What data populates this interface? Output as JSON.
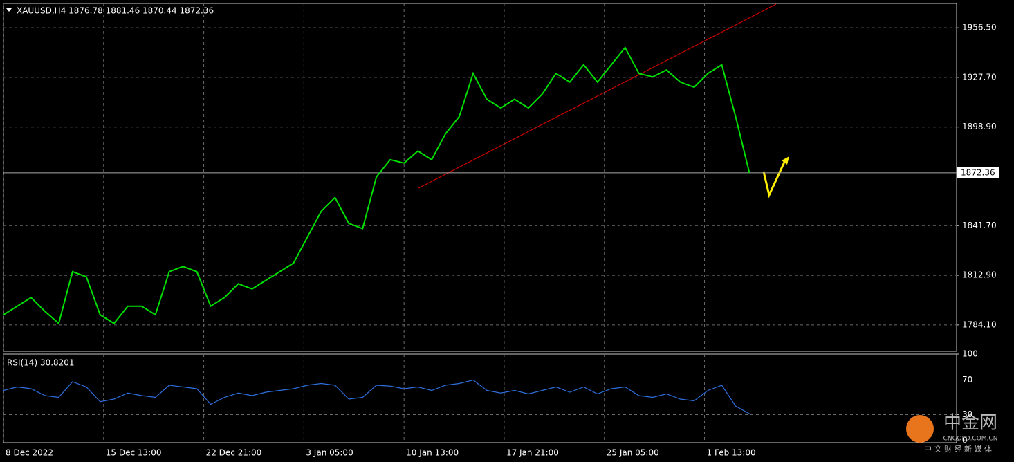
{
  "chart_data": [
    {
      "type": "line",
      "title": "XAUUSD,H4  1876.78 1881.46 1870.44 1872.36",
      "current_price": {
        "value": 1872.36,
        "label": "1872.36"
      },
      "xlim": [
        0,
        276
      ],
      "xticks": [
        {
          "value": 0,
          "label": "8 Dec 2022"
        },
        {
          "value": 29,
          "label": "15 Dec 13:00"
        },
        {
          "value": 58,
          "label": "22 Dec 21:00"
        },
        {
          "value": 87,
          "label": "3 Jan 05:00"
        },
        {
          "value": 116,
          "label": "10 Jan 13:00"
        },
        {
          "value": 145,
          "label": "17 Jan 21:00"
        },
        {
          "value": 174,
          "label": "25 Jan 05:00"
        },
        {
          "value": 203,
          "label": "1 Feb 13:00"
        }
      ],
      "ylim": [
        1768.8,
        1970.6
      ],
      "yticks": [
        {
          "value": 1784.1,
          "label": "1784.10"
        },
        {
          "value": 1812.9,
          "label": "1812.90"
        },
        {
          "value": 1841.7,
          "label": "1841.70"
        },
        {
          "value": 1898.9,
          "label": "1898.90"
        },
        {
          "value": 1927.7,
          "label": "1927.70"
        },
        {
          "value": 1956.5,
          "label": "1956.50"
        }
      ],
      "grid": true,
      "x": [
        0,
        4,
        8,
        12,
        16,
        20,
        24,
        28,
        32,
        36,
        40,
        44,
        48,
        52,
        56,
        60,
        64,
        68,
        72,
        76,
        80,
        84,
        88,
        92,
        96,
        100,
        104,
        108,
        112,
        116,
        120,
        124,
        128,
        132,
        136,
        140,
        144,
        148,
        152,
        156,
        160,
        164,
        168,
        172,
        176,
        180,
        184,
        188,
        192,
        196,
        200,
        204,
        208,
        212,
        216
      ],
      "series": [
        {
          "name": "XAUUSD",
          "color": "#00e000",
          "values": [
            1790,
            1795,
            1800,
            1792,
            1785,
            1815,
            1812,
            1790,
            1785,
            1795,
            1795,
            1790,
            1815,
            1818,
            1815,
            1795,
            1800,
            1808,
            1805,
            1810,
            1815,
            1820,
            1835,
            1850,
            1858,
            1843,
            1840,
            1870,
            1880,
            1878,
            1885,
            1880,
            1895,
            1905,
            1930,
            1915,
            1910,
            1915,
            1910,
            1918,
            1930,
            1925,
            1935,
            1925,
            1935,
            1945,
            1930,
            1928,
            1932,
            1925,
            1922,
            1930,
            1935,
            1905,
            1872.36
          ]
        }
      ]
    },
    {
      "type": "line",
      "title": "RSI(14) 30.8201",
      "xlim": [
        0,
        276
      ],
      "ylim": [
        0,
        100
      ],
      "yticks": [
        0,
        30,
        70,
        100
      ],
      "grid": true,
      "x": [
        0,
        4,
        8,
        12,
        16,
        20,
        24,
        28,
        32,
        36,
        40,
        44,
        48,
        52,
        56,
        60,
        64,
        68,
        72,
        76,
        80,
        84,
        88,
        92,
        96,
        100,
        104,
        108,
        112,
        116,
        120,
        124,
        128,
        132,
        136,
        140,
        144,
        148,
        152,
        156,
        160,
        164,
        168,
        172,
        176,
        180,
        184,
        188,
        192,
        196,
        200,
        204,
        208,
        212,
        216
      ],
      "series": [
        {
          "name": "RSI",
          "color": "#2f6fdf",
          "values": [
            58,
            62,
            60,
            52,
            50,
            68,
            62,
            45,
            48,
            55,
            52,
            50,
            64,
            62,
            60,
            42,
            50,
            55,
            52,
            56,
            58,
            60,
            64,
            66,
            64,
            48,
            50,
            64,
            63,
            60,
            62,
            58,
            64,
            66,
            70,
            58,
            55,
            58,
            54,
            58,
            62,
            56,
            62,
            54,
            60,
            62,
            52,
            50,
            54,
            48,
            46,
            58,
            64,
            40,
            31
          ]
        }
      ]
    }
  ],
  "watermark": {
    "logo": "中金网",
    "site": "CNGOLD.COM.CN",
    "slogan": "中 文 财 经 新 媒 体"
  }
}
